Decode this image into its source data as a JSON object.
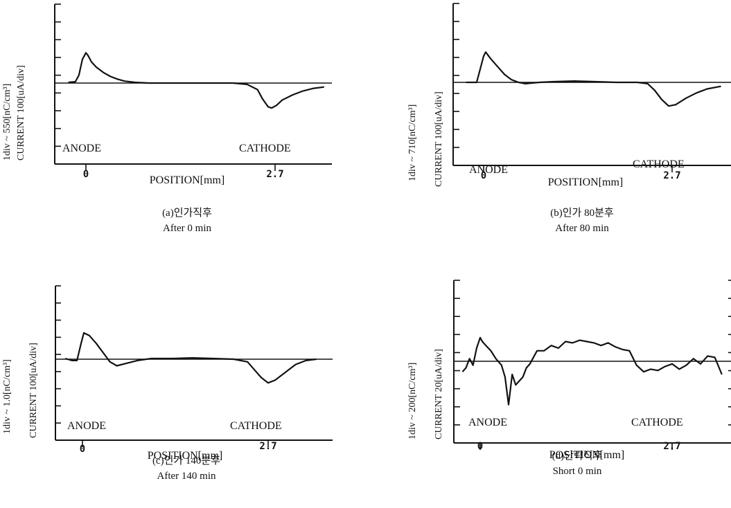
{
  "chart_data": [
    {
      "type": "line",
      "xlabel": "POSITION[mm]",
      "ylabel": [
        "1div ~ 550[nC/cm³]",
        "CURRENT 100[uA/div]"
      ],
      "x_ticks": [
        "0",
        "2.7"
      ],
      "x_range": [
        -0.25,
        3.4
      ],
      "y_range": [
        -4,
        4
      ],
      "electrode_labels": [
        "ANODE",
        "CATHODE"
      ],
      "caption": [
        "(a)인가직후",
        "After 0 min"
      ],
      "series": [
        {
          "x": [
            -0.25,
            -0.15,
            -0.1,
            -0.05,
            0.0,
            0.03,
            0.08,
            0.15,
            0.25,
            0.35,
            0.45,
            0.55,
            0.7,
            0.9,
            1.2,
            1.5,
            1.8,
            2.1,
            2.3,
            2.45,
            2.52,
            2.6,
            2.65,
            2.72,
            2.8,
            2.95,
            3.1,
            3.25,
            3.4
          ],
          "y": [
            0.05,
            0.1,
            0.6,
            1.8,
            2.3,
            2.1,
            1.6,
            1.2,
            0.8,
            0.5,
            0.3,
            0.15,
            0.05,
            0.0,
            0.0,
            0.0,
            0.0,
            0.0,
            -0.1,
            -0.5,
            -1.2,
            -1.8,
            -1.9,
            -1.7,
            -1.3,
            -0.9,
            -0.6,
            -0.4,
            -0.3
          ]
        }
      ]
    },
    {
      "type": "line",
      "xlabel": "POSITION[mm]",
      "ylabel": [
        "1div ~ 710[nC/cm³]",
        "CURRENT 100[uA/div]"
      ],
      "x_ticks": [
        "0",
        "2.7"
      ],
      "x_range": [
        -0.25,
        3.4
      ],
      "y_range": [
        -4,
        4
      ],
      "electrode_labels": [
        "ANODE",
        "CATHODE"
      ],
      "caption": [
        "(b)인가 80분후",
        "After 80 min"
      ],
      "series": [
        {
          "x": [
            -0.25,
            -0.1,
            -0.05,
            0.0,
            0.03,
            0.1,
            0.2,
            0.3,
            0.4,
            0.5,
            0.6,
            0.8,
            1.0,
            1.3,
            1.6,
            1.9,
            2.2,
            2.35,
            2.45,
            2.55,
            2.65,
            2.75,
            2.9,
            3.05,
            3.2,
            3.4
          ],
          "y": [
            0.0,
            0.0,
            1.0,
            2.0,
            2.3,
            1.8,
            1.2,
            0.6,
            0.2,
            0.0,
            -0.1,
            0.0,
            0.05,
            0.1,
            0.05,
            0.0,
            0.0,
            -0.1,
            -0.6,
            -1.3,
            -1.8,
            -1.7,
            -1.2,
            -0.8,
            -0.5,
            -0.3
          ]
        }
      ]
    },
    {
      "type": "line",
      "xlabel": "POSITION[mm]",
      "ylabel": [
        "1div ~ 1.0[nC/cm³]",
        "CURRENT 100[uA/div]"
      ],
      "x_ticks": [
        "0",
        "2.7"
      ],
      "x_range": [
        -0.25,
        3.4
      ],
      "y_range": [
        -4,
        4
      ],
      "electrode_labels": [
        "ANODE",
        "CATHODE"
      ],
      "caption": [
        "(c)인가 140분후",
        "After 140 min"
      ],
      "series": [
        {
          "x": [
            -0.25,
            -0.15,
            -0.08,
            -0.02,
            0.02,
            0.1,
            0.2,
            0.3,
            0.4,
            0.5,
            0.65,
            0.8,
            1.0,
            1.3,
            1.6,
            1.9,
            2.2,
            2.4,
            2.5,
            2.6,
            2.7,
            2.8,
            2.95,
            3.1,
            3.25,
            3.4
          ],
          "y": [
            0.05,
            -0.1,
            -0.1,
            1.2,
            2.0,
            1.8,
            1.2,
            0.5,
            -0.2,
            -0.5,
            -0.3,
            -0.1,
            0.05,
            0.05,
            0.1,
            0.05,
            0.0,
            -0.2,
            -0.8,
            -1.4,
            -1.8,
            -1.6,
            -1.0,
            -0.4,
            -0.1,
            0.0
          ]
        }
      ]
    },
    {
      "type": "line",
      "xlabel": "POSITION[mm]",
      "ylabel": [
        "1div ~ 200[nC/cm³]",
        "CURRENT 20[uA/div]"
      ],
      "x_ticks": [
        "0",
        "2.7"
      ],
      "x_range": [
        -0.25,
        3.4
      ],
      "y_range": [
        -4,
        4
      ],
      "electrode_labels": [
        "ANODE",
        "CATHODE"
      ],
      "caption": [
        "(d)단락직후",
        "Short 0 min"
      ],
      "series": [
        {
          "x": [
            -0.25,
            -0.2,
            -0.15,
            -0.1,
            -0.05,
            0.0,
            0.03,
            0.08,
            0.15,
            0.22,
            0.3,
            0.35,
            0.4,
            0.45,
            0.5,
            0.55,
            0.6,
            0.65,
            0.7,
            0.75,
            0.8,
            0.9,
            1.0,
            1.1,
            1.2,
            1.3,
            1.4,
            1.5,
            1.6,
            1.7,
            1.8,
            1.9,
            2.0,
            2.1,
            2.2,
            2.3,
            2.4,
            2.5,
            2.6,
            2.7,
            2.8,
            2.9,
            3.0,
            3.1,
            3.2,
            3.3,
            3.4
          ],
          "y": [
            -0.8,
            -0.5,
            0.2,
            -0.3,
            1.0,
            1.8,
            1.5,
            1.2,
            0.8,
            0.2,
            -0.3,
            -1.2,
            -3.3,
            -1.0,
            -1.8,
            -1.5,
            -1.2,
            -0.5,
            -0.2,
            0.3,
            0.8,
            0.8,
            1.2,
            1.0,
            1.5,
            1.4,
            1.6,
            1.5,
            1.4,
            1.2,
            1.4,
            1.1,
            0.9,
            0.8,
            -0.3,
            -0.8,
            -0.6,
            -0.7,
            -0.4,
            -0.2,
            -0.6,
            -0.3,
            0.2,
            -0.2,
            0.4,
            0.3,
            -1.0
          ]
        }
      ]
    }
  ]
}
